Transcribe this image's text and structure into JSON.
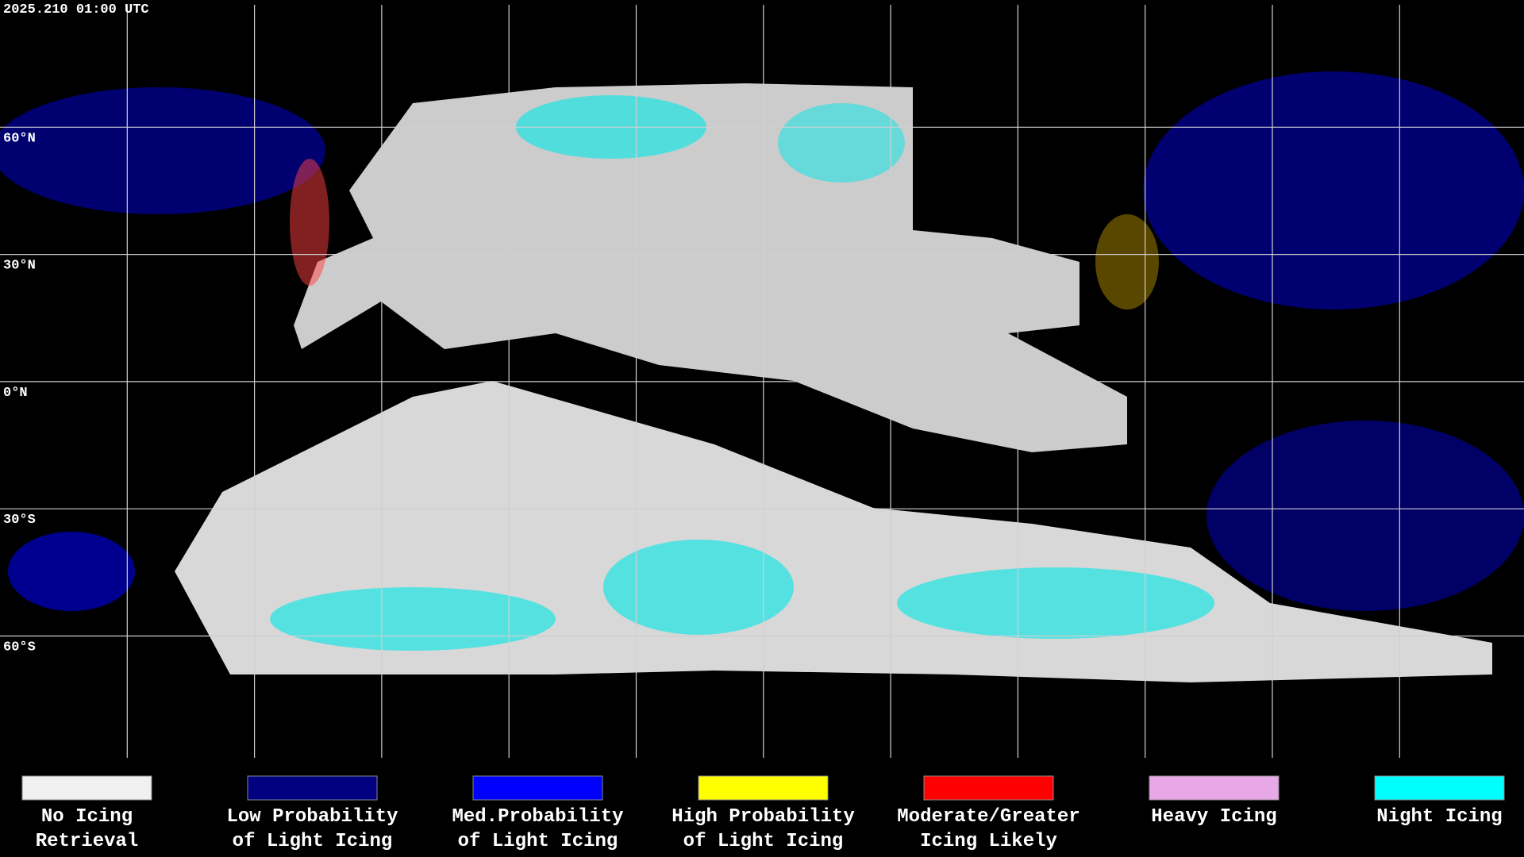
{
  "timestamp": "2025.210 01:00 UTC",
  "latitude_labels": [
    "60°N",
    "30°N",
    "0°N",
    "30°S",
    "60°S"
  ],
  "legend": [
    {
      "lines": [
        "No Icing",
        "Retrieval"
      ],
      "color": "#f0f0f0"
    },
    {
      "lines": [
        "Low Probability",
        "of Light Icing"
      ],
      "color": "#000080"
    },
    {
      "lines": [
        "Med.Probability",
        "of Light Icing"
      ],
      "color": "#0000ff"
    },
    {
      "lines": [
        "High Probability",
        "of Light Icing"
      ],
      "color": "#ffff00"
    },
    {
      "lines": [
        "Moderate/Greater",
        "Icing Likely"
      ],
      "color": "#ff0000"
    },
    {
      "lines": [
        "Heavy Icing"
      ],
      "color": "#e8a8e8"
    },
    {
      "lines": [
        "Night Icing"
      ],
      "color": "#00ffff"
    }
  ]
}
